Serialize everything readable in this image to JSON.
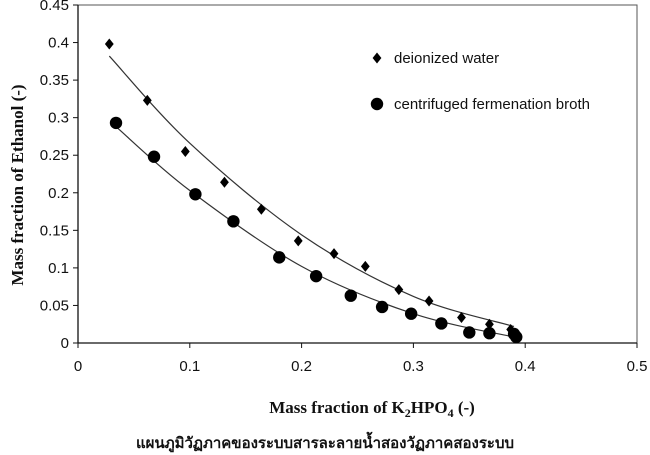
{
  "chart_data": {
    "type": "scatter",
    "xlabel": {
      "prefix": "Mass fraction of K",
      "sub1": "2",
      "mid": "HPO",
      "sub2": "4",
      "suffix": " (-)"
    },
    "ylabel": "Mass fraction of Ethanol  (-)",
    "xlim": [
      0,
      0.5
    ],
    "ylim": [
      0,
      0.45
    ],
    "x_ticks": [
      "0",
      "0.1",
      "0.2",
      "0.3",
      "0.4",
      "0.5"
    ],
    "y_ticks": [
      "0",
      "0.05",
      "0.1",
      "0.15",
      "0.2",
      "0.25",
      "0.3",
      "0.35",
      "0.4",
      "0.45"
    ],
    "grid": false,
    "legend_position": "top-right",
    "series": [
      {
        "name": "deionized water",
        "marker": "diamond",
        "color": "#000000",
        "points": [
          [
            0.028,
            0.398
          ],
          [
            0.062,
            0.323
          ],
          [
            0.096,
            0.255
          ],
          [
            0.131,
            0.214
          ],
          [
            0.164,
            0.178
          ],
          [
            0.197,
            0.136
          ],
          [
            0.229,
            0.119
          ],
          [
            0.257,
            0.102
          ],
          [
            0.287,
            0.071
          ],
          [
            0.314,
            0.056
          ],
          [
            0.343,
            0.034
          ],
          [
            0.368,
            0.025
          ],
          [
            0.387,
            0.018
          ],
          [
            0.392,
            0.012
          ]
        ],
        "fit": [
          [
            0.028,
            0.382
          ],
          [
            0.1,
            0.266
          ],
          [
            0.2,
            0.144
          ],
          [
            0.3,
            0.062
          ],
          [
            0.39,
            0.022
          ]
        ]
      },
      {
        "name": "centrifuged fermenation broth",
        "marker": "circle",
        "color": "#000000",
        "points": [
          [
            0.034,
            0.293
          ],
          [
            0.068,
            0.248
          ],
          [
            0.105,
            0.198
          ],
          [
            0.139,
            0.162
          ],
          [
            0.18,
            0.114
          ],
          [
            0.213,
            0.089
          ],
          [
            0.244,
            0.063
          ],
          [
            0.272,
            0.048
          ],
          [
            0.298,
            0.039
          ],
          [
            0.325,
            0.026
          ],
          [
            0.35,
            0.014
          ],
          [
            0.368,
            0.013
          ],
          [
            0.39,
            0.012
          ],
          [
            0.392,
            0.008
          ]
        ],
        "fit": [
          [
            0.034,
            0.288
          ],
          [
            0.1,
            0.203
          ],
          [
            0.2,
            0.102
          ],
          [
            0.3,
            0.039
          ],
          [
            0.393,
            0.007
          ]
        ]
      }
    ]
  },
  "caption": "แผนภูมิวัฏภาคของระบบสารละลายน้ำสองวัฏภาคสองระบบ"
}
